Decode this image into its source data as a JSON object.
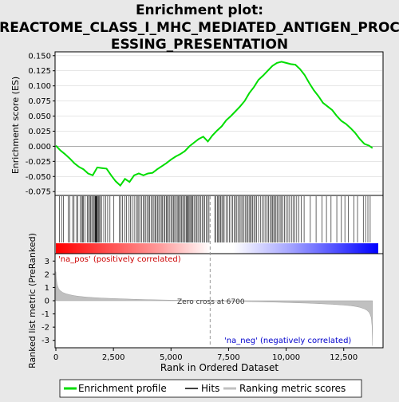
{
  "title_lines": [
    "Enrichment plot:",
    "REACTOME_CLASS_I_MHC_MEDIATED_ANTIGEN_PROC",
    "ESSING_PRESENTATION"
  ],
  "chart_data": [
    {
      "type": "line",
      "panel": "enrichment",
      "ylabel": "Enrichment score (ES)",
      "ylim": [
        -0.08,
        0.155
      ],
      "yticks": [
        0.15,
        0.125,
        0.1,
        0.075,
        0.05,
        0.025,
        0.0,
        -0.025,
        -0.05,
        -0.075
      ],
      "ytick_labels": [
        "0.150",
        "0.125",
        "0.100",
        "0.075",
        "0.050",
        "0.025",
        "0.000",
        "-0.025",
        "-0.050",
        "-0.075"
      ],
      "xlim": [
        0,
        14000
      ],
      "series": [
        {
          "name": "Enrichment profile",
          "color": "#00dd00",
          "x": [
            0,
            200,
            400,
            600,
            800,
            1000,
            1200,
            1400,
            1600,
            1800,
            2000,
            2200,
            2400,
            2600,
            2800,
            3000,
            3200,
            3400,
            3600,
            3800,
            4000,
            4200,
            4400,
            4600,
            4800,
            5000,
            5200,
            5400,
            5600,
            5800,
            6000,
            6200,
            6400,
            6600,
            6800,
            7000,
            7200,
            7400,
            7600,
            7800,
            8000,
            8200,
            8400,
            8600,
            8800,
            9000,
            9200,
            9400,
            9600,
            9800,
            10000,
            10200,
            10400,
            10600,
            10800,
            11000,
            11200,
            11400,
            11600,
            11800,
            12000,
            12200,
            12400,
            12600,
            12800,
            13000,
            13200,
            13400,
            13600,
            13750
          ],
          "y": [
            0.001,
            -0.007,
            -0.013,
            -0.02,
            -0.028,
            -0.034,
            -0.038,
            -0.045,
            -0.048,
            -0.035,
            -0.036,
            -0.037,
            -0.048,
            -0.058,
            -0.065,
            -0.054,
            -0.059,
            -0.048,
            -0.045,
            -0.048,
            -0.045,
            -0.044,
            -0.038,
            -0.033,
            -0.028,
            -0.022,
            -0.017,
            -0.013,
            -0.008,
            0.0,
            0.006,
            0.012,
            0.016,
            0.008,
            0.018,
            0.026,
            0.033,
            0.043,
            0.05,
            0.058,
            0.066,
            0.075,
            0.088,
            0.098,
            0.11,
            0.117,
            0.125,
            0.133,
            0.138,
            0.14,
            0.138,
            0.136,
            0.135,
            0.128,
            0.118,
            0.105,
            0.093,
            0.083,
            0.072,
            0.066,
            0.06,
            0.05,
            0.042,
            0.037,
            0.03,
            0.022,
            0.012,
            0.004,
            0.001,
            -0.003
          ]
        }
      ]
    },
    {
      "type": "hits",
      "panel": "hits",
      "series": [
        {
          "name": "Hits",
          "color": "#000000"
        }
      ],
      "hit_positions": [
        150,
        250,
        330,
        540,
        600,
        730,
        790,
        900,
        960,
        1050,
        1130,
        1160,
        1190,
        1260,
        1360,
        1410,
        1480,
        1510,
        1560,
        1610,
        1660,
        1700,
        1720,
        1740,
        1760,
        1790,
        1810,
        1850,
        1900,
        1930,
        1990,
        2080,
        2160,
        2250,
        2350,
        2520,
        2750,
        2830,
        2890,
        3000,
        3070,
        3180,
        3240,
        3310,
        3400,
        3480,
        3540,
        3600,
        3660,
        3720,
        3790,
        3850,
        3910,
        3970,
        4030,
        4080,
        4140,
        4200,
        4260,
        4310,
        4360,
        4420,
        4470,
        4520,
        4580,
        4630,
        4690,
        4740,
        4800,
        4840,
        4890,
        4950,
        5010,
        5060,
        5110,
        5160,
        5220,
        5270,
        5310,
        5360,
        5410,
        5460,
        5510,
        5560,
        5610,
        5660,
        5700,
        5740,
        5780,
        5820,
        5860,
        5900,
        5950,
        6000,
        6060,
        6110,
        6170,
        6230,
        6290,
        6350,
        6410,
        6470,
        6530,
        6590,
        6650,
        6900,
        6950,
        7010,
        7060,
        7110,
        7160,
        7210,
        7260,
        7310,
        7390,
        7460,
        7540,
        7610,
        7680,
        7740,
        7800,
        7860,
        7920,
        7980,
        8040,
        8100,
        8160,
        8220,
        8280,
        8340,
        8390,
        8440,
        8490,
        8540,
        8600,
        8660,
        8720,
        8800,
        8880,
        8960,
        9040,
        9110,
        9180,
        9240,
        9300,
        9360,
        9410,
        9460,
        9510,
        9560,
        9620,
        9680,
        9740,
        9800,
        9860,
        9930,
        10000,
        10080,
        10150,
        10230,
        10300,
        10380,
        10460,
        10550,
        10650,
        10780,
        11050,
        11300,
        11550,
        11750,
        11950,
        12200,
        12400,
        12550,
        12700,
        12950,
        13100,
        13350,
        13450,
        13550,
        13650
      ]
    },
    {
      "type": "area",
      "panel": "ranked_metric",
      "ylabel": "Ranked list metric (PreRanked)",
      "xlabel": "Rank in Ordered Dataset",
      "xlim": [
        0,
        14000
      ],
      "ylim": [
        -3.5,
        3.5
      ],
      "yticks": [
        3,
        2,
        1,
        0,
        -1,
        -2,
        -3
      ],
      "ytick_labels": [
        "3",
        "2",
        "1",
        "0",
        "-1",
        "-2",
        "-3"
      ],
      "xticks": [
        0,
        2500,
        5000,
        7500,
        10000,
        12500
      ],
      "xtick_labels": [
        "0",
        "2,500",
        "5,000",
        "7,500",
        "10,000",
        "12,500"
      ],
      "series": [
        {
          "name": "Ranking metric scores",
          "color": "#c0c0c0",
          "x": [
            0,
            20,
            60,
            120,
            200,
            300,
            450,
            600,
            800,
            1000,
            1300,
            1600,
            2000,
            2500,
            3000,
            3500,
            4000,
            4500,
            5000,
            5500,
            6000,
            6500,
            6700,
            7000,
            7500,
            8000,
            8500,
            9000,
            9500,
            10000,
            10500,
            11000,
            11500,
            12000,
            12500,
            12800,
            13000,
            13200,
            13400,
            13500,
            13600,
            13650,
            13700,
            13730,
            13750
          ],
          "y": [
            2.2,
            1.6,
            1.2,
            0.9,
            0.75,
            0.62,
            0.52,
            0.45,
            0.38,
            0.33,
            0.28,
            0.24,
            0.2,
            0.16,
            0.13,
            0.1,
            0.08,
            0.06,
            0.045,
            0.03,
            0.015,
            0.005,
            0.0,
            -0.01,
            -0.03,
            -0.05,
            -0.07,
            -0.09,
            -0.11,
            -0.13,
            -0.16,
            -0.19,
            -0.23,
            -0.27,
            -0.33,
            -0.38,
            -0.43,
            -0.5,
            -0.62,
            -0.72,
            -0.88,
            -1.05,
            -1.3,
            -1.9,
            -3.4
          ]
        }
      ],
      "annotations": {
        "pos_label": "'na_pos' (positively correlated)",
        "neg_label": "'na_neg' (negatively correlated)",
        "zero_cross_label": "Zero cross at 6700",
        "zero_cross": 6700
      }
    }
  ],
  "legend": [
    {
      "name": "Enrichment profile",
      "color": "#00dd00"
    },
    {
      "name": "Hits",
      "color": "#000000"
    },
    {
      "name": "Ranking metric scores",
      "color": "#c0c0c0"
    }
  ],
  "colors": {
    "pos": "#ff0000",
    "neg": "#0000ff",
    "es_line": "#00dd00",
    "neg_text": "#0000cc"
  }
}
